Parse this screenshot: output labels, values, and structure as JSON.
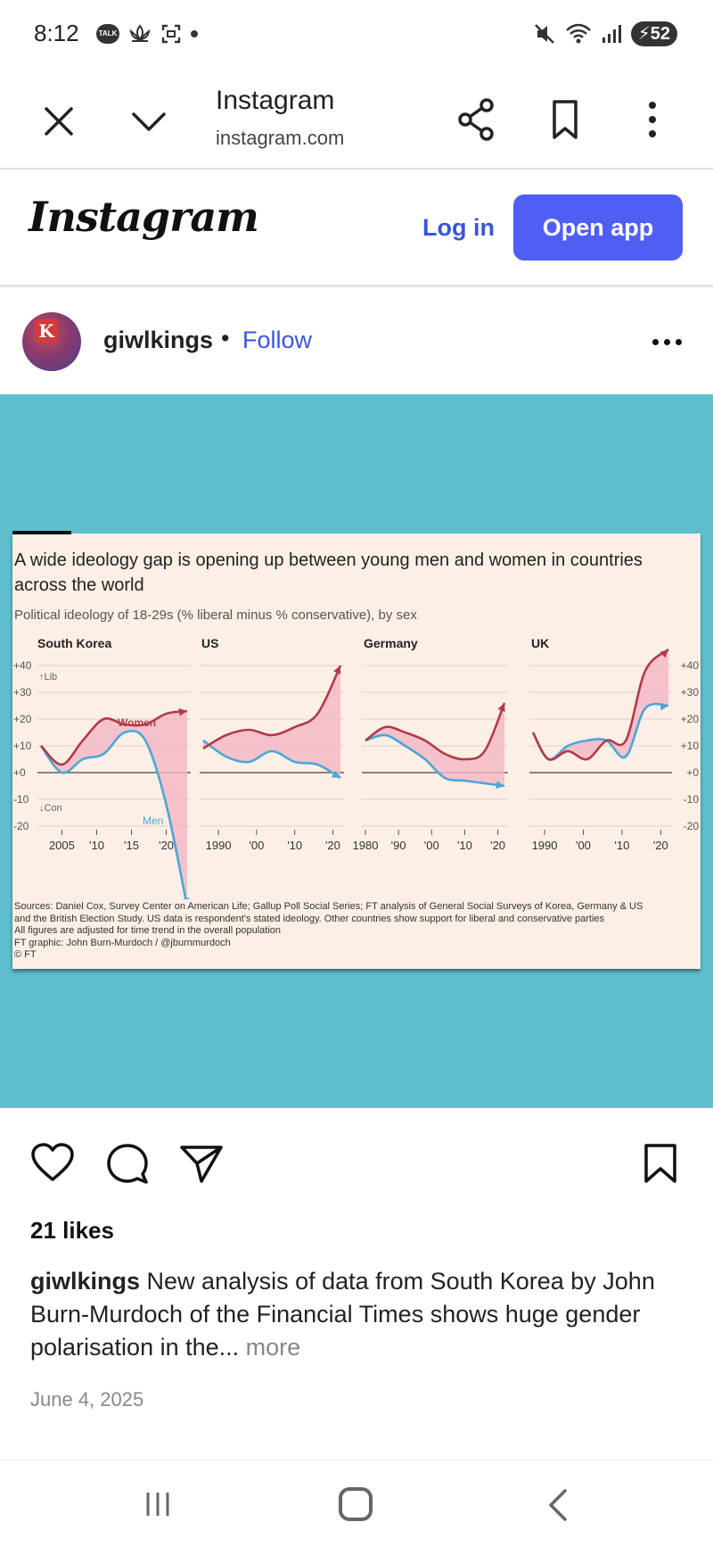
{
  "status_bar": {
    "time": "8:12",
    "talk_label": "TALK",
    "battery": "52"
  },
  "browser": {
    "title": "Instagram",
    "url": "instagram.com"
  },
  "ig_header": {
    "logo": "Instagram",
    "login": "Log in",
    "open_app": "Open app"
  },
  "post": {
    "avatar_letter": "K",
    "username": "giwlkings",
    "separator": "•",
    "follow": "Follow",
    "likes": "21 likes",
    "caption_user": "giwlkings",
    "caption_text": " New analysis of data from South Korea by John Burn-Murdoch of the Financial Times shows huge gender polarisation in the...",
    "caption_more": " more",
    "date": "June 4, 2025"
  },
  "figure": {
    "title": "A wide ideology gap is opening up between young men and women in countries across the world",
    "subtitle": "Political ideology of 18-29s (% liberal minus % conservative), by sex",
    "panels": [
      "South Korea",
      "US",
      "Germany",
      "UK"
    ],
    "y_ticks": [
      "+40",
      "+30",
      "+20",
      "+10",
      "+0",
      "-10",
      "-20"
    ],
    "lib_label": "↑Lib",
    "con_label": "↓Con",
    "women_label": "Women",
    "men_label": "Men",
    "x_ticks": {
      "korea": [
        "2005",
        "'10",
        "'15",
        "'20"
      ],
      "us": [
        "1990",
        "'00",
        "'10",
        "'20"
      ],
      "germany": [
        "1980",
        "'90",
        "'00",
        "'10",
        "'20"
      ],
      "uk": [
        "1990",
        "'00",
        "'10",
        "'20"
      ]
    },
    "notes": [
      "Sources: Daniel Cox, Survey Center on American Life; Gallup Poll Social Series; FT analysis of General Social Surveys of Korea, Germany & US",
      "and the British Election Study. US data is respondent's stated ideology. Other countries show support for liberal and conservative parties",
      "All figures are adjusted for time trend in the overall population",
      "FT graphic: John Burn-Murdoch / @jburnmurdoch",
      "© FT"
    ]
  },
  "chart_data": {
    "type": "line",
    "title": "A wide ideology gap is opening up between young men and women in countries across the world",
    "subtitle": "Political ideology of 18-29s (% liberal minus % conservative), by sex",
    "ylim": [
      -20,
      40
    ],
    "panels": [
      {
        "name": "South Korea",
        "x": [
          2002,
          2005,
          2008,
          2011,
          2014,
          2017,
          2020,
          2023
        ],
        "series": [
          {
            "name": "Women",
            "values": [
              10,
              3,
              12,
              20,
              18,
              18,
              22,
              23
            ]
          },
          {
            "name": "Men",
            "values": [
              10,
              0,
              5,
              7,
              15,
              12,
              -12,
              -50
            ]
          }
        ]
      },
      {
        "name": "US",
        "x": [
          1986,
          1992,
          1998,
          2004,
          2010,
          2016,
          2022
        ],
        "series": [
          {
            "name": "Women",
            "values": [
              9,
              14,
              16,
              14,
              17,
              22,
              40
            ]
          },
          {
            "name": "Men",
            "values": [
              12,
              6,
              4,
              8,
              4,
              3,
              -2
            ]
          }
        ]
      },
      {
        "name": "Germany",
        "x": [
          1980,
          1986,
          1992,
          1998,
          2004,
          2010,
          2016,
          2022
        ],
        "series": [
          {
            "name": "Women",
            "values": [
              12,
              17,
              15,
              12,
              7,
              5,
              8,
              26
            ]
          },
          {
            "name": "Men",
            "values": [
              12,
              14,
              10,
              5,
              -2,
              -3,
              -4,
              -5
            ]
          }
        ]
      },
      {
        "name": "UK",
        "x": [
          1987,
          1991,
          1996,
          2001,
          2006,
          2011,
          2016,
          2022
        ],
        "series": [
          {
            "name": "Women",
            "values": [
              15,
              5,
              8,
              5,
              12,
              12,
              38,
              46
            ]
          },
          {
            "name": "Men",
            "values": [
              15,
              5,
              10,
              12,
              12,
              6,
              24,
              25
            ]
          }
        ]
      }
    ]
  }
}
